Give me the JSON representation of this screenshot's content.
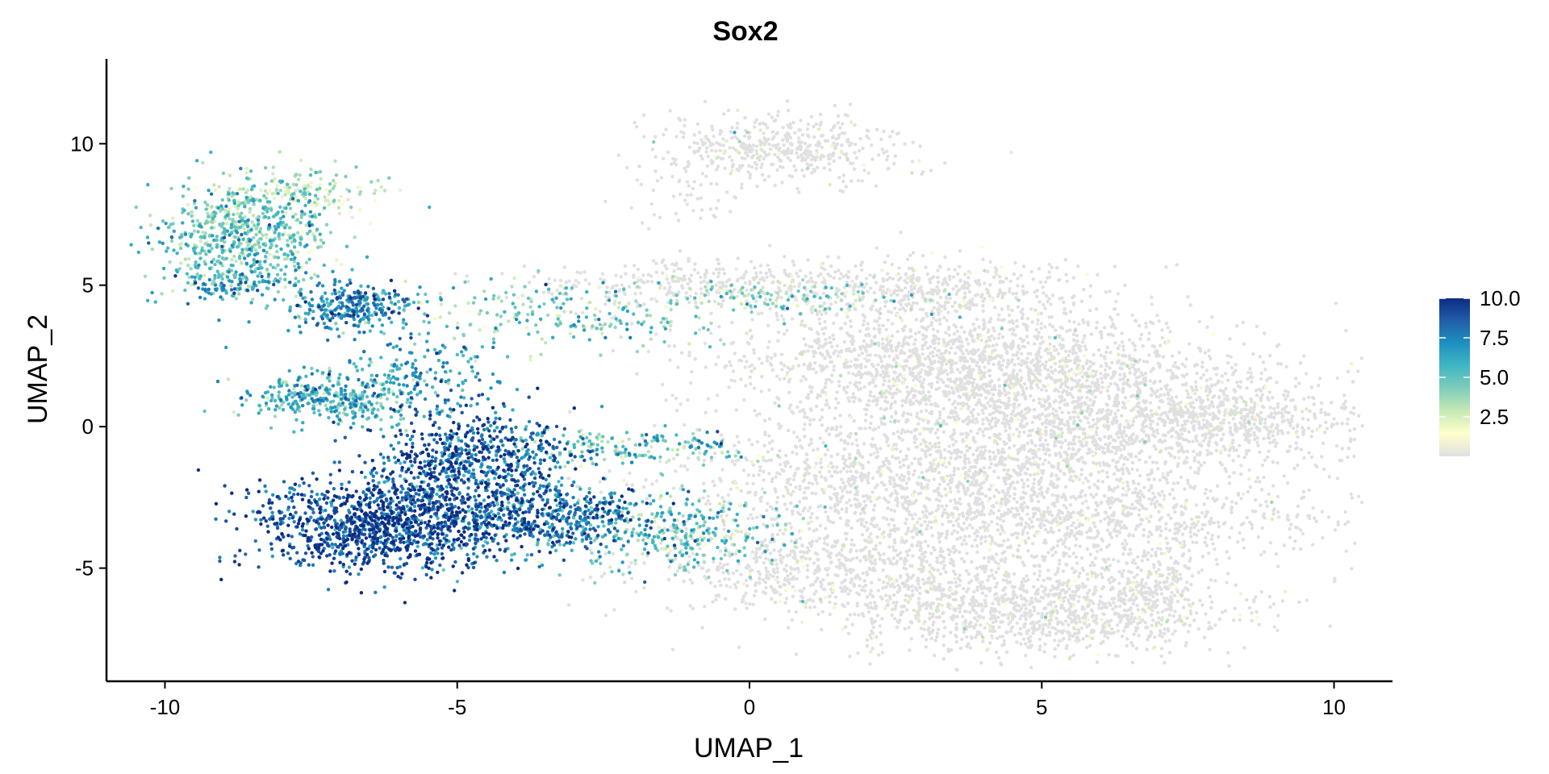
{
  "chart_data": {
    "type": "scatter",
    "title": "Sox2",
    "xlabel": "UMAP_1",
    "ylabel": "UMAP_2",
    "xlim": [
      -11,
      11
    ],
    "ylim": [
      -9,
      13
    ],
    "xticks": [
      -10,
      -5,
      0,
      5,
      10
    ],
    "yticks": [
      -5,
      0,
      5,
      10
    ],
    "xtick_labels": [
      "-10",
      "-5",
      "0",
      "5",
      "10"
    ],
    "ytick_labels": [
      "-5",
      "0",
      "5",
      "10"
    ],
    "grid": false,
    "legend": {
      "placement": "right",
      "type": "colorbar",
      "range": [
        0,
        10
      ],
      "ticks": [
        2.5,
        5.0,
        7.5,
        10.0
      ],
      "tick_labels": [
        "2.5",
        "5.0",
        "7.5",
        "10.0"
      ]
    },
    "colors": {
      "low": "#e0e0e0",
      "scale": [
        "#e0e0e0",
        "#ffffcc",
        "#c7e9b4",
        "#7fcdbb",
        "#41b6c4",
        "#1d91c0",
        "#225ea8",
        "#0c2c84"
      ]
    },
    "clusters": [
      {
        "x": -8.6,
        "y": 6.8,
        "sx": 0.7,
        "sy": 0.9,
        "n": 650,
        "expr": 4.5
      },
      {
        "x": -8.8,
        "y": 5.0,
        "sx": 0.55,
        "sy": 0.35,
        "n": 140,
        "expr": 6.0
      },
      {
        "x": -7.8,
        "y": 8.3,
        "sx": 0.7,
        "sy": 0.45,
        "n": 180,
        "expr": 3.0
      },
      {
        "x": -6.8,
        "y": 4.2,
        "sx": 0.55,
        "sy": 0.5,
        "n": 320,
        "expr": 7.0
      },
      {
        "x": -7.2,
        "y": 1.0,
        "sx": 0.7,
        "sy": 0.45,
        "n": 380,
        "expr": 5.5
      },
      {
        "x": -5.5,
        "y": 1.8,
        "sx": 0.6,
        "sy": 0.7,
        "n": 160,
        "expr": 6.5
      },
      {
        "x": -4.7,
        "y": -1.2,
        "sx": 0.85,
        "sy": 0.85,
        "n": 700,
        "expr": 8.5
      },
      {
        "x": -6.3,
        "y": -3.5,
        "sx": 1.05,
        "sy": 0.8,
        "n": 1200,
        "expr": 9.0
      },
      {
        "x": -3.4,
        "y": -3.2,
        "sx": 1.0,
        "sy": 0.6,
        "n": 520,
        "expr": 7.5
      },
      {
        "x": -1.3,
        "y": -3.8,
        "sx": 1.0,
        "sy": 0.7,
        "n": 300,
        "expr": 4.5
      },
      {
        "x": -2.0,
        "y": -0.7,
        "sx": 1.1,
        "sy": 0.3,
        "n": 180,
        "expr": 5.0
      },
      {
        "x": -3.2,
        "y": 3.9,
        "sx": 1.3,
        "sy": 0.55,
        "n": 220,
        "expr": 4.5
      },
      {
        "x": 0.4,
        "y": 4.6,
        "sx": 1.2,
        "sy": 0.35,
        "n": 120,
        "expr": 4.0
      },
      {
        "x": -0.5,
        "y": 5.0,
        "sx": 1.8,
        "sy": 0.45,
        "n": 400,
        "expr": 0.6
      },
      {
        "x": 3.2,
        "y": 4.8,
        "sx": 1.3,
        "sy": 0.55,
        "n": 350,
        "expr": 0.6
      },
      {
        "x": 0.5,
        "y": 9.8,
        "sx": 1.1,
        "sy": 0.6,
        "n": 480,
        "expr": 0.8
      },
      {
        "x": -1.0,
        "y": 8.0,
        "sx": 0.6,
        "sy": 0.6,
        "n": 40,
        "expr": 0.8
      },
      {
        "x": 3.5,
        "y": 2.4,
        "sx": 2.0,
        "sy": 1.0,
        "n": 1500,
        "expr": 0.9
      },
      {
        "x": 5.5,
        "y": 0.2,
        "sx": 2.3,
        "sy": 1.2,
        "n": 1800,
        "expr": 0.8
      },
      {
        "x": 8.2,
        "y": 0.3,
        "sx": 0.8,
        "sy": 0.6,
        "n": 350,
        "expr": 0.5
      },
      {
        "x": 2.5,
        "y": -1.8,
        "sx": 2.2,
        "sy": 1.0,
        "n": 900,
        "expr": 0.9
      },
      {
        "x": 5.5,
        "y": -3.2,
        "sx": 2.2,
        "sy": 0.8,
        "n": 900,
        "expr": 0.7
      },
      {
        "x": 5.0,
        "y": -6.5,
        "sx": 1.6,
        "sy": 0.8,
        "n": 1100,
        "expr": 0.7
      },
      {
        "x": 1.6,
        "y": -5.0,
        "sx": 1.7,
        "sy": 0.9,
        "n": 800,
        "expr": 0.8
      },
      {
        "x": 7.0,
        "y": -5.5,
        "sx": 0.4,
        "sy": 0.9,
        "n": 220,
        "expr": 0.6
      }
    ]
  }
}
